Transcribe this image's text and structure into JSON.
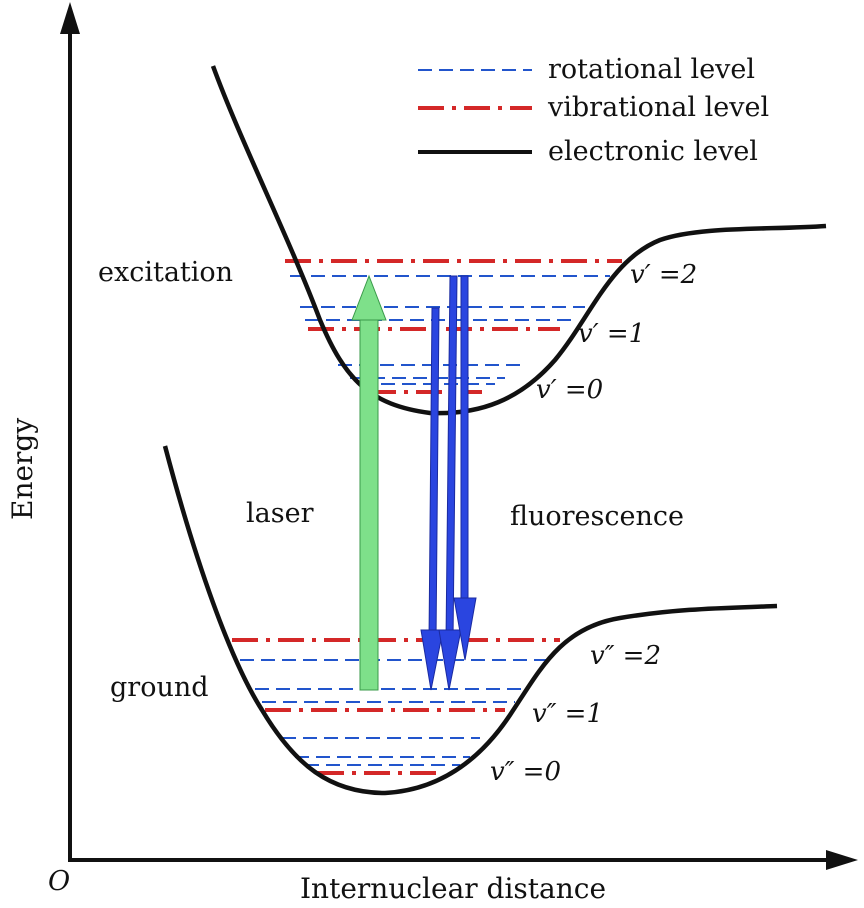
{
  "axes": {
    "y_title": "Energy",
    "x_title": "Internuclear distance",
    "origin": "O"
  },
  "legend": {
    "rotational": "rotational level",
    "vibrational": "vibrational level",
    "electronic": "electronic level"
  },
  "labels": {
    "excitation": "excitation",
    "ground": "ground",
    "laser": "laser",
    "fluorescence": "fluorescence"
  },
  "excited_levels": [
    "v′ =0",
    "v′ =1",
    "v′ =2"
  ],
  "ground_levels": [
    "v″ =0",
    "v″ =1",
    "v″ =2"
  ],
  "colors": {
    "rotational": "#2255cc",
    "vibrational": "#d42828",
    "electronic": "#111111",
    "laser": "#7ee08a",
    "fluorescence": "#2a45e0"
  }
}
